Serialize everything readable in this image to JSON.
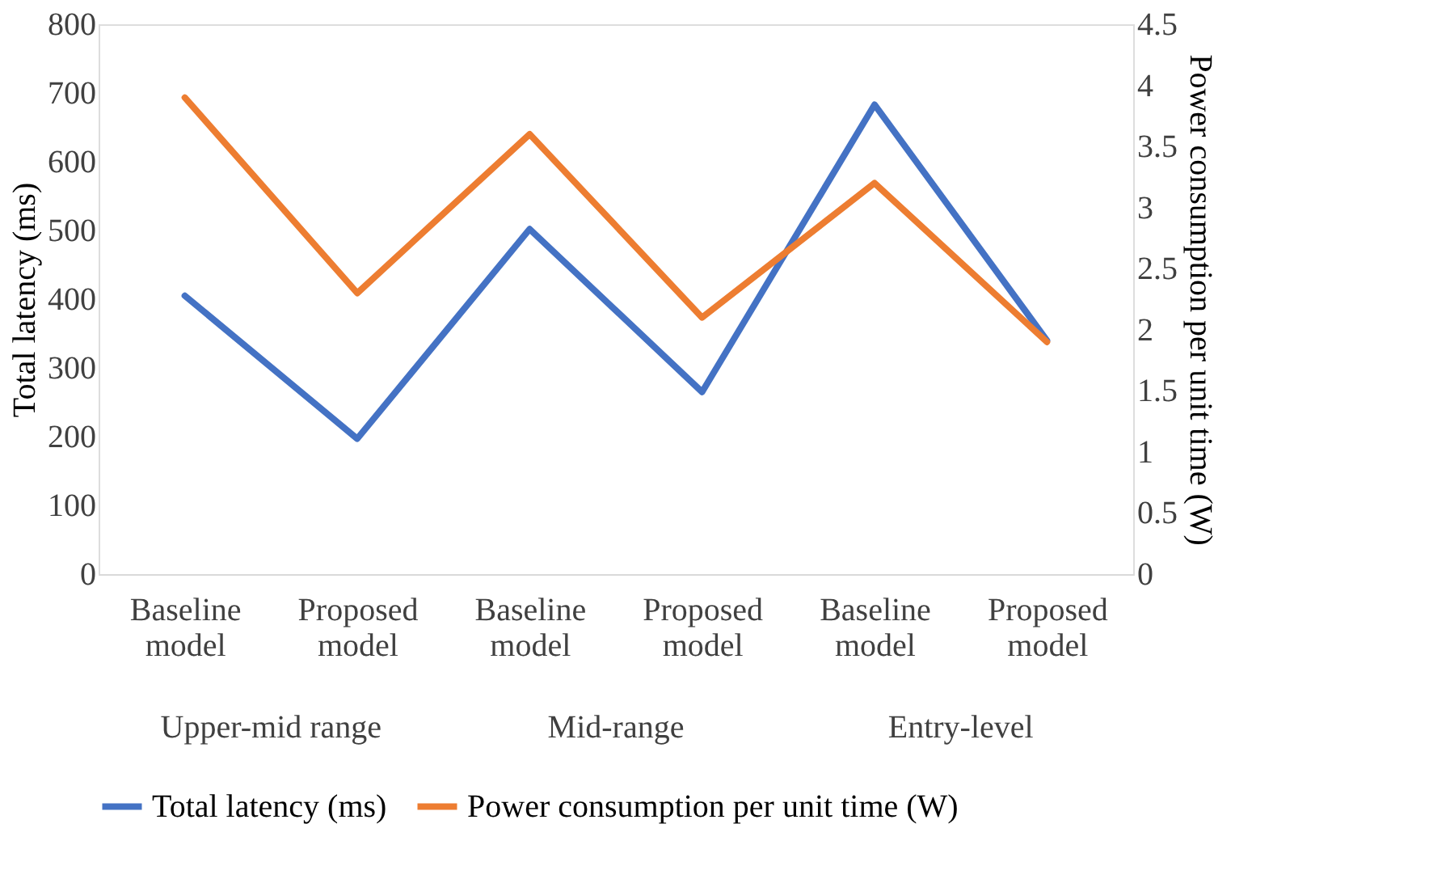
{
  "chart_data": {
    "type": "line",
    "categories": [
      "Baseline model",
      "Proposed model",
      "Baseline model",
      "Proposed model",
      "Baseline model",
      "Proposed model"
    ],
    "series": [
      {
        "name": "Total latency (ms)",
        "color": "#4472c4",
        "values": [
          405,
          197,
          502,
          265,
          683,
          340
        ]
      },
      {
        "name": "Power consumption per unit time (W)",
        "color": "#ed7d31",
        "axis": "y2",
        "values": [
          3.9,
          2.3,
          3.6,
          2.1,
          3.2,
          1.9
        ]
      }
    ],
    "ylabel": "Total latency (ms)",
    "y2label": "Power consumption per unit time (W)",
    "ylim": [
      0,
      800
    ],
    "yticks": [
      0,
      100,
      200,
      300,
      400,
      500,
      600,
      700,
      800
    ],
    "y2lim": [
      0,
      4.5
    ],
    "y2ticks": [
      0,
      0.5,
      1,
      1.5,
      2,
      2.5,
      3,
      3.5,
      4,
      4.5
    ],
    "annotations": [
      "Upper-mid range",
      "Mid-range",
      "Entry-level"
    ],
    "legend": "bottom",
    "grid": false,
    "marker": "none",
    "line_style": "solid"
  }
}
